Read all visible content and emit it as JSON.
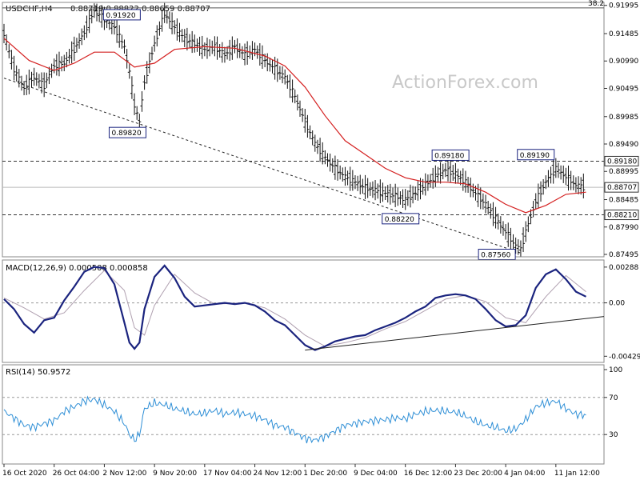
{
  "chart_data": [
    {
      "type": "candlestick",
      "title": "USDCHF,H4",
      "ohlc": "0.88719 0.88822 0.88659 0.88707",
      "watermark": "ActionForex.com",
      "ylim": [
        0.87495,
        0.9202
      ],
      "y_ticks": [
        "0.91995",
        "0.91485",
        "0.90990",
        "0.90495",
        "0.89985",
        "0.89490",
        "0.88995",
        "0.88485",
        "0.87990",
        "0.87495"
      ],
      "fib_label": "38.2",
      "last_price": "0.88707",
      "horizontal_levels": [
        {
          "label": "0.89180",
          "value": 0.8918
        },
        {
          "label": "0.88210",
          "value": 0.8821
        }
      ],
      "fib_level": 0.9195,
      "annotations": [
        {
          "label": "0.91920",
          "x": 23.5,
          "y": 0.9192
        },
        {
          "label": "0.89820",
          "x": 27.5,
          "y": 0.8982
        },
        {
          "label": "0.89180",
          "x": 89,
          "y": 0.8918
        },
        {
          "label": "0.88220",
          "x": 80,
          "y": 0.8822
        },
        {
          "label": "0.89190",
          "x": 106,
          "y": 0.8919
        },
        {
          "label": "0.87560",
          "x": 100,
          "y": 0.8756
        }
      ],
      "x_ticks": [
        {
          "label": "16 Oct 2020",
          "x": 0
        },
        {
          "label": "26 Oct 04:00",
          "x": 10
        },
        {
          "label": "2 Nov 12:00",
          "x": 20
        },
        {
          "label": "9 Nov 20:00",
          "x": 30
        },
        {
          "label": "17 Nov 04:00",
          "x": 40
        },
        {
          "label": "24 Nov 12:00",
          "x": 50
        },
        {
          "label": "1 Dec 20:00",
          "x": 60
        },
        {
          "label": "9 Dec 04:00",
          "x": 70
        },
        {
          "label": "16 Dec 12:00",
          "x": 80
        },
        {
          "label": "23 Dec 20:00",
          "x": 90
        },
        {
          "label": "4 Jan 04:00",
          "x": 100
        },
        {
          "label": "11 Jan 12:00",
          "x": 110
        }
      ],
      "price_points": [
        [
          0,
          0.9148
        ],
        [
          2,
          0.9085
        ],
        [
          4,
          0.905
        ],
        [
          6,
          0.907
        ],
        [
          8,
          0.9055
        ],
        [
          10,
          0.909
        ],
        [
          12,
          0.9095
        ],
        [
          14,
          0.912
        ],
        [
          16,
          0.915
        ],
        [
          18,
          0.919
        ],
        [
          20,
          0.9175
        ],
        [
          22,
          0.916
        ],
        [
          24,
          0.9125
        ],
        [
          25,
          0.908
        ],
        [
          26,
          0.902
        ],
        [
          27,
          0.899
        ],
        [
          28,
          0.906
        ],
        [
          30,
          0.913
        ],
        [
          32,
          0.9185
        ],
        [
          34,
          0.916
        ],
        [
          36,
          0.914
        ],
        [
          38,
          0.913
        ],
        [
          40,
          0.912
        ],
        [
          42,
          0.9125
        ],
        [
          44,
          0.911
        ],
        [
          46,
          0.9125
        ],
        [
          48,
          0.911
        ],
        [
          50,
          0.912
        ],
        [
          52,
          0.91
        ],
        [
          54,
          0.9085
        ],
        [
          56,
          0.907
        ],
        [
          58,
          0.9035
        ],
        [
          60,
          0.899
        ],
        [
          62,
          0.895
        ],
        [
          64,
          0.8925
        ],
        [
          66,
          0.8905
        ],
        [
          68,
          0.889
        ],
        [
          70,
          0.888
        ],
        [
          72,
          0.887
        ],
        [
          74,
          0.8865
        ],
        [
          76,
          0.886
        ],
        [
          78,
          0.8855
        ],
        [
          80,
          0.8848
        ],
        [
          82,
          0.886
        ],
        [
          84,
          0.8875
        ],
        [
          86,
          0.889
        ],
        [
          88,
          0.8902
        ],
        [
          90,
          0.8895
        ],
        [
          92,
          0.888
        ],
        [
          94,
          0.886
        ],
        [
          96,
          0.884
        ],
        [
          98,
          0.8815
        ],
        [
          100,
          0.879
        ],
        [
          102,
          0.8765
        ],
        [
          103,
          0.876
        ],
        [
          104,
          0.879
        ],
        [
          106,
          0.8845
        ],
        [
          108,
          0.888
        ],
        [
          110,
          0.8905
        ],
        [
          112,
          0.889
        ],
        [
          114,
          0.8875
        ],
        [
          116,
          0.8871
        ]
      ],
      "moving_average": [
        [
          0,
          0.914
        ],
        [
          5,
          0.91
        ],
        [
          10,
          0.9082
        ],
        [
          14,
          0.9095
        ],
        [
          18,
          0.9115
        ],
        [
          22,
          0.9115
        ],
        [
          26,
          0.9088
        ],
        [
          30,
          0.9095
        ],
        [
          34,
          0.912
        ],
        [
          40,
          0.9125
        ],
        [
          46,
          0.9122
        ],
        [
          52,
          0.9108
        ],
        [
          56,
          0.909
        ],
        [
          60,
          0.9052
        ],
        [
          64,
          0.9
        ],
        [
          68,
          0.8955
        ],
        [
          72,
          0.893
        ],
        [
          76,
          0.8905
        ],
        [
          80,
          0.8888
        ],
        [
          84,
          0.888
        ],
        [
          88,
          0.888
        ],
        [
          92,
          0.8877
        ],
        [
          96,
          0.8862
        ],
        [
          100,
          0.884
        ],
        [
          104,
          0.8825
        ],
        [
          108,
          0.8838
        ],
        [
          112,
          0.8858
        ],
        [
          116,
          0.8862
        ]
      ]
    },
    {
      "type": "line",
      "title": "MACD(12,26,9) 0.000508 0.000858",
      "ylim": [
        -0.0046,
        0.003
      ],
      "y_ticks": [
        {
          "label": "0.00288",
          "value": 0.00288
        },
        {
          "label": "0.00",
          "value": 0.0
        },
        {
          "label": "-0.004298",
          "value": -0.004298
        }
      ],
      "macd": [
        [
          0,
          0.0003
        ],
        [
          2,
          -0.0005
        ],
        [
          4,
          -0.0017
        ],
        [
          6,
          -0.0024
        ],
        [
          8,
          -0.0014
        ],
        [
          10,
          -0.0012
        ],
        [
          12,
          0.0002
        ],
        [
          14,
          0.0013
        ],
        [
          16,
          0.0025
        ],
        [
          18,
          0.0029
        ],
        [
          20,
          0.0028
        ],
        [
          22,
          0.0015
        ],
        [
          24,
          -0.0016
        ],
        [
          25,
          -0.0032
        ],
        [
          26,
          -0.0037
        ],
        [
          27,
          -0.0032
        ],
        [
          28,
          -0.0005
        ],
        [
          30,
          0.0021
        ],
        [
          32,
          0.003
        ],
        [
          34,
          0.002
        ],
        [
          36,
          0.0005
        ],
        [
          38,
          -0.0003
        ],
        [
          40,
          -0.0002
        ],
        [
          42,
          -0.0001
        ],
        [
          44,
          0.0
        ],
        [
          46,
          -0.0001
        ],
        [
          48,
          0.0
        ],
        [
          50,
          -0.0002
        ],
        [
          52,
          -0.0007
        ],
        [
          54,
          -0.0014
        ],
        [
          56,
          -0.0018
        ],
        [
          58,
          -0.0026
        ],
        [
          60,
          -0.0034
        ],
        [
          62,
          -0.0038
        ],
        [
          64,
          -0.0035
        ],
        [
          66,
          -0.0031
        ],
        [
          68,
          -0.0029
        ],
        [
          70,
          -0.0027
        ],
        [
          72,
          -0.0026
        ],
        [
          74,
          -0.0022
        ],
        [
          76,
          -0.0019
        ],
        [
          78,
          -0.0016
        ],
        [
          80,
          -0.0012
        ],
        [
          82,
          -0.0007
        ],
        [
          84,
          -0.0003
        ],
        [
          86,
          0.0004
        ],
        [
          88,
          0.0006
        ],
        [
          90,
          0.0007
        ],
        [
          92,
          0.0006
        ],
        [
          94,
          0.0003
        ],
        [
          96,
          -0.0005
        ],
        [
          98,
          -0.0014
        ],
        [
          100,
          -0.0019
        ],
        [
          102,
          -0.0018
        ],
        [
          104,
          -0.001
        ],
        [
          106,
          0.0012
        ],
        [
          108,
          0.0023
        ],
        [
          110,
          0.0027
        ],
        [
          112,
          0.0019
        ],
        [
          114,
          0.0009
        ],
        [
          116,
          0.0005
        ]
      ],
      "signal": [
        [
          0,
          0.0004
        ],
        [
          4,
          -0.0004
        ],
        [
          8,
          -0.0013
        ],
        [
          12,
          -0.0008
        ],
        [
          16,
          0.001
        ],
        [
          20,
          0.0026
        ],
        [
          24,
          0.001
        ],
        [
          26,
          -0.002
        ],
        [
          28,
          -0.0026
        ],
        [
          30,
          -0.0002
        ],
        [
          34,
          0.0023
        ],
        [
          38,
          0.0008
        ],
        [
          42,
          -0.0001
        ],
        [
          48,
          0.0
        ],
        [
          52,
          -0.0004
        ],
        [
          56,
          -0.0013
        ],
        [
          60,
          -0.0026
        ],
        [
          64,
          -0.0035
        ],
        [
          68,
          -0.0032
        ],
        [
          72,
          -0.0028
        ],
        [
          76,
          -0.0021
        ],
        [
          80,
          -0.0015
        ],
        [
          84,
          -0.0006
        ],
        [
          88,
          0.0003
        ],
        [
          92,
          0.0006
        ],
        [
          96,
          0.0001
        ],
        [
          100,
          -0.0012
        ],
        [
          104,
          -0.0016
        ],
        [
          108,
          0.0005
        ],
        [
          112,
          0.0022
        ],
        [
          116,
          0.0009
        ]
      ],
      "trendline": [
        [
          60,
          -0.0038
        ],
        [
          116,
          -0.0011
        ]
      ]
    },
    {
      "type": "line",
      "title": "RSI(14) 50.9572",
      "ylim": [
        0,
        100
      ],
      "y_ticks": [
        {
          "label": "100",
          "value": 100
        },
        {
          "label": "70",
          "value": 70
        },
        {
          "label": "30",
          "value": 30
        },
        {
          "label": "0",
          "value": 0
        }
      ],
      "rsi": [
        [
          0,
          55
        ],
        [
          2,
          48
        ],
        [
          4,
          40
        ],
        [
          6,
          38
        ],
        [
          8,
          42
        ],
        [
          10,
          45
        ],
        [
          12,
          55
        ],
        [
          14,
          60
        ],
        [
          16,
          66
        ],
        [
          18,
          68
        ],
        [
          20,
          62
        ],
        [
          22,
          55
        ],
        [
          24,
          42
        ],
        [
          25,
          30
        ],
        [
          26,
          24
        ],
        [
          27,
          30
        ],
        [
          28,
          58
        ],
        [
          30,
          64
        ],
        [
          32,
          62
        ],
        [
          34,
          58
        ],
        [
          36,
          55
        ],
        [
          38,
          52
        ],
        [
          40,
          53
        ],
        [
          42,
          56
        ],
        [
          44,
          52
        ],
        [
          46,
          54
        ],
        [
          48,
          52
        ],
        [
          50,
          50
        ],
        [
          52,
          46
        ],
        [
          54,
          40
        ],
        [
          56,
          38
        ],
        [
          58,
          32
        ],
        [
          60,
          26
        ],
        [
          62,
          24
        ],
        [
          64,
          28
        ],
        [
          66,
          34
        ],
        [
          68,
          40
        ],
        [
          70,
          42
        ],
        [
          72,
          44
        ],
        [
          74,
          45
        ],
        [
          76,
          46
        ],
        [
          78,
          48
        ],
        [
          80,
          47
        ],
        [
          82,
          52
        ],
        [
          84,
          55
        ],
        [
          86,
          56
        ],
        [
          88,
          55
        ],
        [
          90,
          54
        ],
        [
          92,
          50
        ],
        [
          94,
          44
        ],
        [
          96,
          40
        ],
        [
          98,
          38
        ],
        [
          100,
          34
        ],
        [
          102,
          36
        ],
        [
          104,
          46
        ],
        [
          106,
          60
        ],
        [
          108,
          64
        ],
        [
          110,
          66
        ],
        [
          112,
          58
        ],
        [
          114,
          52
        ],
        [
          116,
          51
        ]
      ]
    }
  ]
}
